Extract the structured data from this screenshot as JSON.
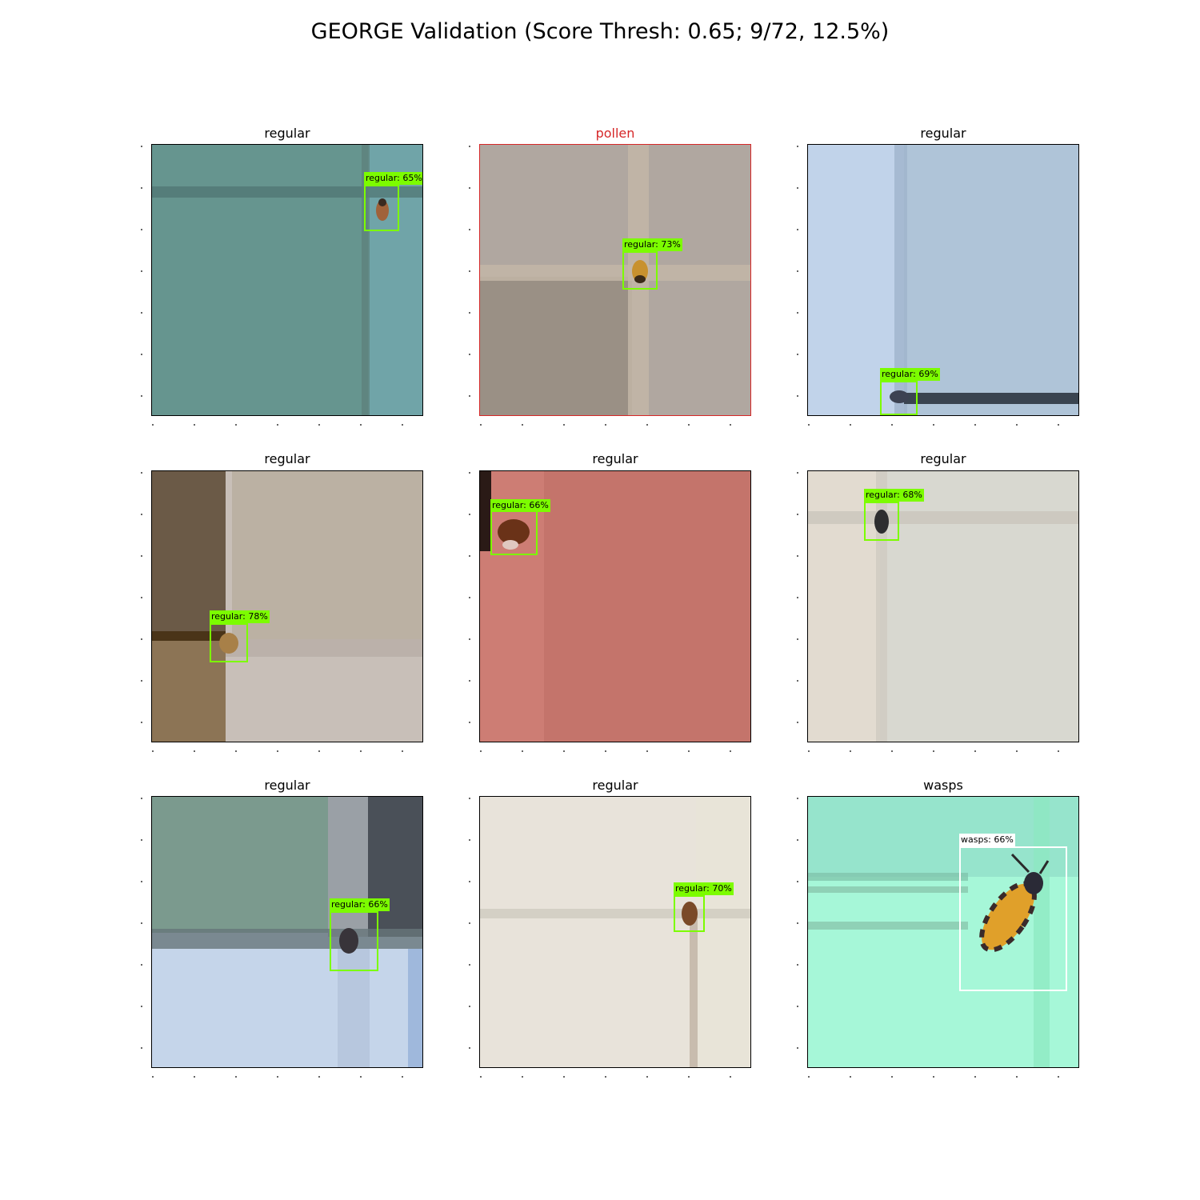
{
  "figure": {
    "title": "GEORGE Validation (Score Thresh: 0.65; 9/72, 12.5%)"
  },
  "panels": [
    {
      "title": "regular",
      "title_color": "#000000",
      "frame": "normal",
      "detections": [
        {
          "label": "regular: 65%",
          "class": "regular"
        }
      ]
    },
    {
      "title": "pollen",
      "title_color": "#d62728",
      "frame": "mismatch",
      "detections": [
        {
          "label": "regular: 73%",
          "class": "regular"
        }
      ]
    },
    {
      "title": "regular",
      "title_color": "#000000",
      "frame": "normal",
      "detections": [
        {
          "label": "regular: 69%",
          "class": "regular"
        }
      ]
    },
    {
      "title": "regular",
      "title_color": "#000000",
      "frame": "normal",
      "detections": [
        {
          "label": "regular: 78%",
          "class": "regular"
        }
      ]
    },
    {
      "title": "regular",
      "title_color": "#000000",
      "frame": "normal",
      "detections": [
        {
          "label": "regular: 66%",
          "class": "regular"
        }
      ]
    },
    {
      "title": "regular",
      "title_color": "#000000",
      "frame": "normal",
      "detections": [
        {
          "label": "regular: 68%",
          "class": "regular"
        }
      ]
    },
    {
      "title": "regular",
      "title_color": "#000000",
      "frame": "normal",
      "detections": [
        {
          "label": "regular: 66%",
          "class": "regular"
        }
      ]
    },
    {
      "title": "regular",
      "title_color": "#000000",
      "frame": "normal",
      "detections": [
        {
          "label": "regular: 70%",
          "class": "regular"
        }
      ]
    },
    {
      "title": "wasps",
      "title_color": "#000000",
      "frame": "normal",
      "detections": [
        {
          "label": "wasps: 66%",
          "class": "wasps"
        }
      ]
    }
  ],
  "colors": {
    "detection_box": "#7cfc00",
    "wasp_box": "#ffffff",
    "mismatch": "#d62728"
  }
}
